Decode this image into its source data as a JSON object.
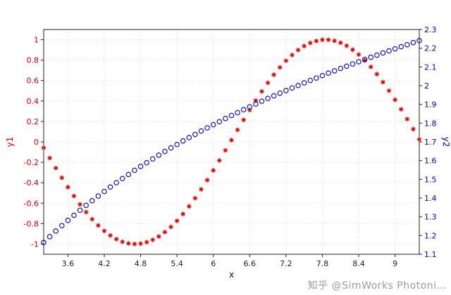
{
  "chart_data": {
    "type": "scatter",
    "title": "",
    "xlabel": "x",
    "ylabel_left": "y1",
    "ylabel_right": "y2",
    "grid": true,
    "legend": "none",
    "x_range": [
      3.2,
      9.4
    ],
    "y1_range": [
      -1.1,
      1.1
    ],
    "y2_range": [
      1.1,
      2.3
    ],
    "x_ticks": [
      3.6,
      4.2,
      4.8,
      5.4,
      6,
      6.6,
      7.2,
      7.8,
      8.4,
      9
    ],
    "y1_ticks": [
      -1,
      -0.8,
      -0.6,
      -0.4,
      -0.2,
      0,
      0.2,
      0.4,
      0.6,
      0.8,
      1
    ],
    "y2_ticks": [
      1.1,
      1.2,
      1.3,
      1.4,
      1.5,
      1.6,
      1.7,
      1.8,
      1.9,
      2,
      2.1,
      2.2,
      2.3
    ],
    "x": [
      3.2,
      3.3,
      3.4,
      3.5,
      3.6,
      3.7,
      3.8,
      3.9,
      4.0,
      4.1,
      4.2,
      4.3,
      4.4,
      4.5,
      4.6,
      4.7,
      4.8,
      4.9,
      5.0,
      5.1,
      5.2,
      5.3,
      5.4,
      5.5,
      5.6,
      5.7,
      5.8,
      5.9,
      6.0,
      6.1,
      6.2,
      6.3,
      6.4,
      6.5,
      6.6,
      6.7,
      6.8,
      6.9,
      7.0,
      7.1,
      7.2,
      7.3,
      7.4,
      7.5,
      7.6,
      7.7,
      7.8,
      7.9,
      8.0,
      8.1,
      8.2,
      8.3,
      8.4,
      8.5,
      8.6,
      8.7,
      8.8,
      8.9,
      9.0,
      9.1,
      9.2,
      9.3,
      9.4
    ],
    "series": [
      {
        "name": "y1",
        "axis": "left",
        "marker": "asterisk",
        "color": "#d40000",
        "values": [
          -0.058,
          -0.158,
          -0.256,
          -0.351,
          -0.443,
          -0.53,
          -0.612,
          -0.688,
          -0.757,
          -0.818,
          -0.872,
          -0.916,
          -0.952,
          -0.978,
          -0.994,
          -1.0,
          -0.996,
          -0.982,
          -0.959,
          -0.926,
          -0.883,
          -0.832,
          -0.773,
          -0.706,
          -0.631,
          -0.551,
          -0.465,
          -0.374,
          -0.279,
          -0.182,
          -0.083,
          0.017,
          0.117,
          0.215,
          0.312,
          0.405,
          0.494,
          0.578,
          0.657,
          0.729,
          0.794,
          0.85,
          0.899,
          0.938,
          0.968,
          0.988,
          0.999,
          0.999,
          0.989,
          0.97,
          0.941,
          0.902,
          0.855,
          0.798,
          0.734,
          0.663,
          0.585,
          0.501,
          0.412,
          0.319,
          0.223,
          0.125,
          0.025
        ]
      },
      {
        "name": "y2",
        "axis": "right",
        "marker": "circle",
        "color": "#0000bb",
        "values": [
          1.163,
          1.194,
          1.224,
          1.253,
          1.281,
          1.308,
          1.335,
          1.361,
          1.386,
          1.411,
          1.435,
          1.459,
          1.482,
          1.504,
          1.526,
          1.548,
          1.569,
          1.589,
          1.609,
          1.629,
          1.649,
          1.668,
          1.686,
          1.705,
          1.723,
          1.74,
          1.758,
          1.775,
          1.792,
          1.808,
          1.825,
          1.841,
          1.856,
          1.872,
          1.887,
          1.902,
          1.917,
          1.932,
          1.946,
          1.96,
          1.974,
          1.988,
          2.001,
          2.015,
          2.028,
          2.041,
          2.054,
          2.067,
          2.079,
          2.092,
          2.104,
          2.116,
          2.128,
          2.14,
          2.152,
          2.163,
          2.175,
          2.186,
          2.197,
          2.208,
          2.219,
          2.23,
          2.241
        ]
      }
    ],
    "colors": {
      "grid": "#d6d6d6",
      "frame": "#222222",
      "x_tick_text": "#222222"
    }
  },
  "watermark": "知乎 @SimWorks Photoni…"
}
